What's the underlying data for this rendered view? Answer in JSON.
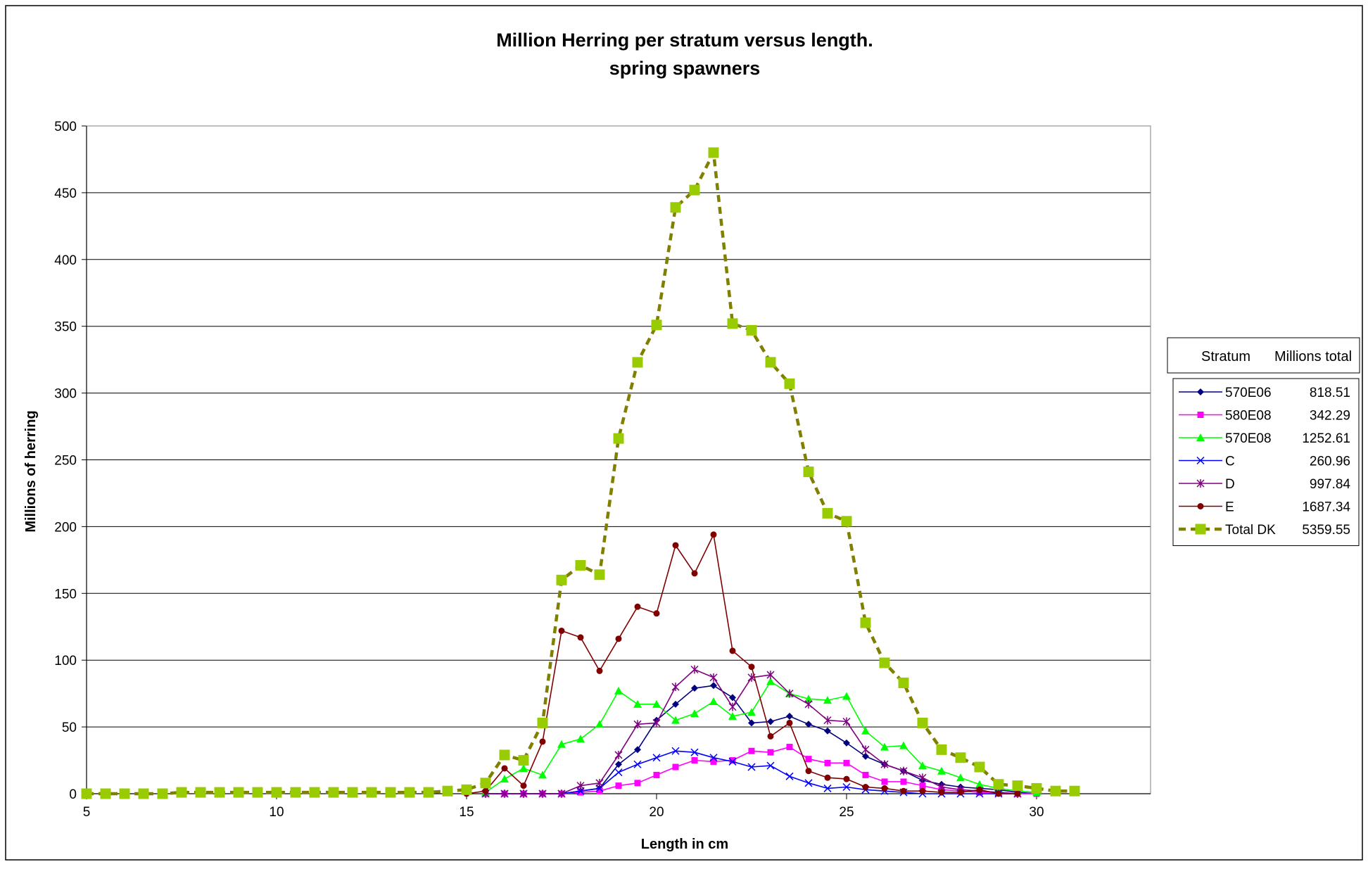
{
  "chart_data": {
    "type": "line",
    "title": "Million Herring per stratum versus length.",
    "subtitle": "spring spawners",
    "xlabel": "Length in cm",
    "ylabel": "Millions of herring",
    "xlim": [
      5,
      33
    ],
    "ylim": [
      0,
      500
    ],
    "x_ticks": [
      5,
      10,
      15,
      20,
      25,
      30
    ],
    "y_ticks": [
      0,
      50,
      100,
      150,
      200,
      250,
      300,
      350,
      400,
      450,
      500
    ],
    "grid": "horizontal",
    "legend_position": "right",
    "legend_header": {
      "stratum": "Stratum",
      "total": "Millions total"
    },
    "x": [
      5,
      5.5,
      6,
      6.5,
      7,
      7.5,
      8,
      8.5,
      9,
      9.5,
      10,
      10.5,
      11,
      11.5,
      12,
      12.5,
      13,
      13.5,
      14,
      14.5,
      15,
      15.5,
      16,
      16.5,
      17,
      17.5,
      18,
      18.5,
      19,
      19.5,
      20,
      20.5,
      21,
      21.5,
      22,
      22.5,
      23,
      23.5,
      24,
      24.5,
      25,
      25.5,
      26,
      26.5,
      27,
      27.5,
      28,
      28.5,
      29,
      29.5,
      30,
      30.5,
      31
    ],
    "series": [
      {
        "name": "570E06",
        "total": "818.51",
        "color": "#000080",
        "marker": "diamond",
        "dashed": false,
        "values": [
          null,
          null,
          null,
          null,
          null,
          null,
          null,
          null,
          null,
          null,
          null,
          null,
          null,
          null,
          null,
          null,
          null,
          null,
          null,
          null,
          null,
          0,
          0,
          0,
          0,
          0,
          2,
          4,
          22,
          33,
          55,
          67,
          79,
          81,
          72,
          53,
          54,
          58,
          52,
          47,
          38,
          28,
          22,
          17,
          10,
          7,
          5,
          4,
          3,
          1,
          0,
          null,
          null
        ]
      },
      {
        "name": "580E08",
        "total": "342.29",
        "color": "#FF00FF",
        "marker": "square",
        "dashed": false,
        "values": [
          null,
          null,
          null,
          null,
          null,
          null,
          null,
          null,
          null,
          null,
          null,
          null,
          null,
          null,
          null,
          null,
          null,
          null,
          null,
          null,
          null,
          0,
          0,
          0,
          0,
          0,
          1,
          2,
          6,
          8,
          14,
          20,
          25,
          24,
          25,
          32,
          31,
          35,
          26,
          23,
          23,
          14,
          9,
          9,
          6,
          3,
          2,
          1,
          1,
          0,
          0,
          null,
          null
        ]
      },
      {
        "name": "570E08",
        "total": "1252.61",
        "color": "#00FF00",
        "marker": "triangle",
        "dashed": false,
        "values": [
          null,
          null,
          null,
          null,
          null,
          null,
          null,
          null,
          null,
          null,
          null,
          null,
          null,
          null,
          null,
          null,
          null,
          null,
          null,
          null,
          null,
          1,
          11,
          19,
          14,
          37,
          41,
          52,
          77,
          67,
          67,
          55,
          60,
          69,
          58,
          61,
          84,
          75,
          71,
          70,
          73,
          47,
          35,
          36,
          21,
          17,
          12,
          7,
          4,
          2,
          1,
          null,
          null
        ]
      },
      {
        "name": "C",
        "total": "260.96",
        "color": "#0000FF",
        "marker": "x",
        "dashed": false,
        "values": [
          null,
          null,
          null,
          null,
          null,
          null,
          null,
          null,
          null,
          null,
          null,
          null,
          null,
          null,
          null,
          null,
          null,
          null,
          null,
          null,
          null,
          0,
          0,
          0,
          0,
          0,
          2,
          4,
          16,
          22,
          27,
          32,
          31,
          27,
          24,
          20,
          21,
          13,
          8,
          4,
          5,
          3,
          2,
          1,
          0,
          0,
          0,
          0,
          0,
          0,
          null,
          null,
          null
        ]
      },
      {
        "name": "D",
        "total": "997.84",
        "color": "#800080",
        "marker": "star",
        "dashed": false,
        "values": [
          null,
          null,
          null,
          null,
          null,
          null,
          null,
          null,
          null,
          null,
          null,
          null,
          null,
          null,
          null,
          null,
          null,
          null,
          null,
          null,
          null,
          0,
          0,
          0,
          0,
          0,
          6,
          8,
          29,
          52,
          53,
          80,
          93,
          87,
          65,
          87,
          89,
          75,
          67,
          55,
          54,
          33,
          22,
          17,
          12,
          5,
          3,
          2,
          1,
          0,
          null,
          null,
          null
        ]
      },
      {
        "name": "E",
        "total": "1687.34",
        "color": "#800000",
        "marker": "circle",
        "dashed": false,
        "values": [
          null,
          null,
          null,
          null,
          null,
          null,
          null,
          null,
          null,
          null,
          null,
          null,
          null,
          null,
          null,
          null,
          null,
          null,
          null,
          null,
          0,
          2,
          19,
          6,
          39,
          122,
          117,
          92,
          116,
          140,
          135,
          186,
          165,
          194,
          107,
          95,
          43,
          53,
          17,
          12,
          11,
          5,
          4,
          2,
          2,
          1,
          1,
          3,
          0,
          0,
          null,
          null,
          null
        ]
      },
      {
        "name": "Total DK",
        "total": "5359.55",
        "color": "#808000",
        "marker_color": "#99CC00",
        "marker": "square",
        "dashed": true,
        "values": [
          0,
          0,
          0,
          0,
          0,
          1,
          1,
          1,
          1,
          1,
          1,
          1,
          1,
          1,
          1,
          1,
          1,
          1,
          1,
          2,
          3,
          8,
          29,
          25,
          53,
          160,
          171,
          164,
          266,
          323,
          351,
          439,
          452,
          480,
          352,
          347,
          323,
          307,
          241,
          210,
          204,
          128,
          98,
          83,
          53,
          33,
          27,
          20,
          7,
          6,
          4,
          2,
          2
        ]
      }
    ]
  }
}
